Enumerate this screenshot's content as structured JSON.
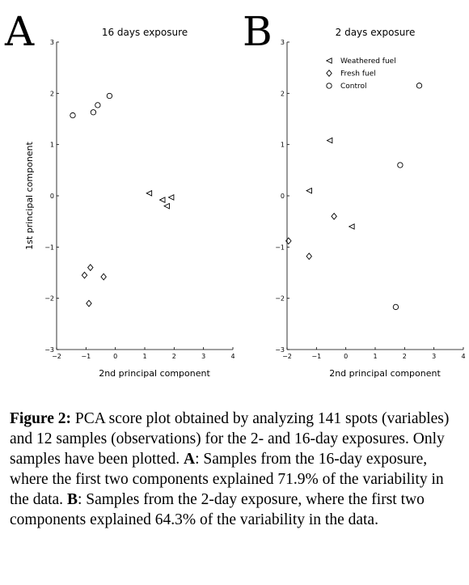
{
  "chart_data": [
    {
      "panel": "A",
      "type": "scatter",
      "title": "16 days exposure",
      "xlabel": "2nd principal component",
      "ylabel": "1st principal component",
      "xlim": [
        -2,
        4
      ],
      "ylim": [
        -3,
        3
      ],
      "xticks": [
        "−2",
        "−1",
        "0",
        "1",
        "2",
        "3",
        "4"
      ],
      "yticks": [
        "−3",
        "−2",
        "−1",
        "0",
        "1",
        "2",
        "3"
      ],
      "legend": null,
      "series": [
        {
          "marker": "triangle",
          "points": [
            [
              1.15,
              0.05
            ],
            [
              1.6,
              -0.08
            ],
            [
              1.9,
              -0.03
            ],
            [
              1.75,
              -0.2
            ]
          ]
        },
        {
          "marker": "diamond",
          "points": [
            [
              -0.85,
              -1.4
            ],
            [
              -1.05,
              -1.55
            ],
            [
              -0.4,
              -1.58
            ],
            [
              -0.9,
              -2.1
            ]
          ]
        },
        {
          "marker": "circle",
          "points": [
            [
              -1.45,
              1.57
            ],
            [
              -0.75,
              1.63
            ],
            [
              -0.6,
              1.77
            ],
            [
              -0.2,
              1.95
            ]
          ]
        }
      ]
    },
    {
      "panel": "B",
      "type": "scatter",
      "title": "2 days exposure",
      "xlabel": "2nd principal component",
      "ylabel": "",
      "xlim": [
        -2,
        4
      ],
      "ylim": [
        -3,
        3
      ],
      "xticks": [
        "−2",
        "−1",
        "0",
        "1",
        "2",
        "3",
        "4"
      ],
      "yticks": [
        "−3",
        "−2",
        "−1",
        "0",
        "1",
        "2",
        "3"
      ],
      "legend": {
        "placement": "top-left"
      },
      "series": [
        {
          "name": "Weathered fuel",
          "marker": "triangle",
          "points": [
            [
              -0.55,
              1.08
            ],
            [
              -1.25,
              0.1
            ],
            [
              0.2,
              -0.6
            ]
          ]
        },
        {
          "name": "Fresh fuel",
          "marker": "diamond",
          "points": [
            [
              -0.4,
              -0.4
            ],
            [
              -1.95,
              -0.88
            ],
            [
              -1.25,
              -1.18
            ]
          ]
        },
        {
          "name": "Control",
          "marker": "circle",
          "points": [
            [
              2.5,
              2.15
            ],
            [
              1.85,
              0.6
            ],
            [
              1.7,
              -2.17
            ]
          ]
        }
      ]
    }
  ],
  "caption": {
    "label": "Figure 2:",
    "text1": " PCA score plot obtained by analyzing 141 spots (variables) and 12 samples (observations) for the 2- and 16-day exposures. Only samples have been plotted. ",
    "a_label": "A",
    "a_text": ": Samples from the 16-day exposure, where the first two components explained 71.9% of the variability in the data. ",
    "b_label": "B",
    "b_text": ": Samples from the 2-day exposure, where the first two components explained 64.3% of the variability in the data."
  }
}
